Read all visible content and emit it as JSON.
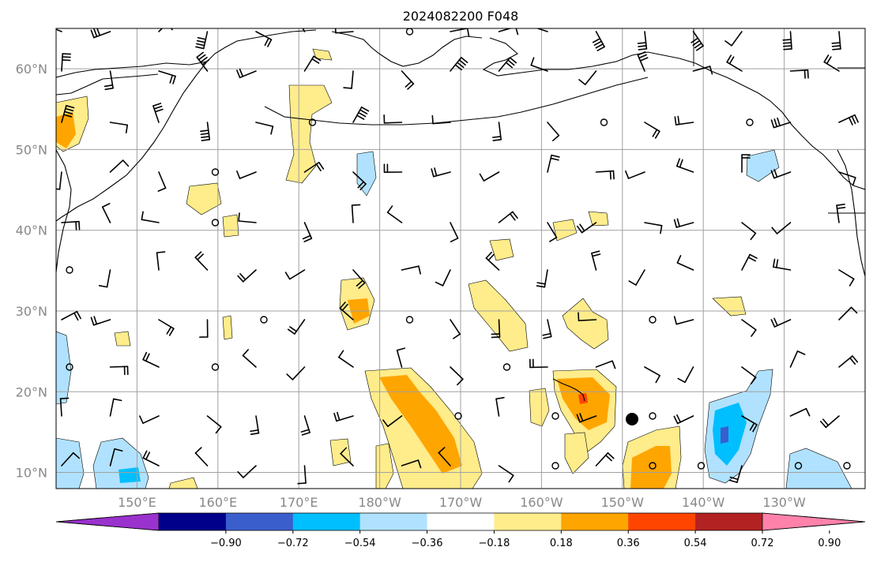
{
  "title": "2024082200 F048",
  "map": {
    "extent": {
      "lon_min": 140,
      "lon_max": 240,
      "lat_min": 8,
      "lat_max": 65
    },
    "lat_labels": [
      {
        "lat": 10,
        "text": "10°N"
      },
      {
        "lat": 20,
        "text": "20°N"
      },
      {
        "lat": 30,
        "text": "30°N"
      },
      {
        "lat": 40,
        "text": "40°N"
      },
      {
        "lat": 50,
        "text": "50°N"
      },
      {
        "lat": 60,
        "text": "60°N"
      }
    ],
    "lon_labels": [
      {
        "lon": 150,
        "text": "150°E"
      },
      {
        "lon": 160,
        "text": "160°E"
      },
      {
        "lon": 170,
        "text": "170°E"
      },
      {
        "lon": 180,
        "text": "180°W"
      },
      {
        "lon": 190,
        "text": "170°W"
      },
      {
        "lon": 200,
        "text": "160°W"
      },
      {
        "lon": 210,
        "text": "150°W"
      },
      {
        "lon": 220,
        "text": "140°W"
      },
      {
        "lon": 230,
        "text": "130°W"
      }
    ],
    "colors": {
      "neg_090": "#9a32cd",
      "neg_072": "#00008b",
      "neg_054": "#3a5fcd",
      "neg_036": "#00bfff",
      "neg_018": "#b0e2ff",
      "zero": "#ffffff",
      "pos_018": "#ffec8b",
      "pos_036": "#ffa500",
      "pos_054": "#ff4500",
      "pos_072": "#b22222",
      "pos_090": "#ff82ab"
    }
  },
  "colorbar": {
    "levels": [
      -0.9,
      -0.72,
      -0.54,
      -0.36,
      -0.18,
      0.18,
      0.36,
      0.54,
      0.72,
      0.9
    ],
    "tick_labels": [
      "−0.90",
      "−0.72",
      "−0.54",
      "−0.36",
      "−0.18",
      "0.18",
      "0.36",
      "0.54",
      "0.72",
      "0.90"
    ],
    "colors": [
      "#9a32cd",
      "#00008b",
      "#3a5fcd",
      "#00bfff",
      "#b0e2ff",
      "#ffffff",
      "#ffec8b",
      "#ffa500",
      "#ff4500",
      "#b22222",
      "#ff82ab"
    ]
  }
}
